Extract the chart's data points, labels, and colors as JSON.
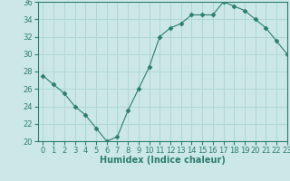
{
  "x": [
    0,
    1,
    2,
    3,
    4,
    5,
    6,
    7,
    8,
    9,
    10,
    11,
    12,
    13,
    14,
    15,
    16,
    17,
    18,
    19,
    20,
    21,
    22,
    23
  ],
  "y": [
    27.5,
    26.5,
    25.5,
    24.0,
    23.0,
    21.5,
    20.0,
    20.5,
    23.5,
    26.0,
    28.5,
    32.0,
    33.0,
    33.5,
    34.5,
    34.5,
    34.5,
    36.0,
    35.5,
    35.0,
    34.0,
    33.0,
    31.5,
    30.0
  ],
  "line_color": "#2d7d6e",
  "marker": "D",
  "marker_size": 2.5,
  "bg_color": "#cce8e6",
  "grid_color": "#b0d8d5",
  "xlabel": "Humidex (Indice chaleur)",
  "ylim": [
    20,
    36
  ],
  "xlim": [
    -0.5,
    23
  ],
  "yticks": [
    20,
    22,
    24,
    26,
    28,
    30,
    32,
    34,
    36
  ],
  "xticks": [
    0,
    1,
    2,
    3,
    4,
    5,
    6,
    7,
    8,
    9,
    10,
    11,
    12,
    13,
    14,
    15,
    16,
    17,
    18,
    19,
    20,
    21,
    22,
    23
  ],
  "tick_color": "#2d7d6e",
  "label_color": "#2d7d6e",
  "label_fontsize": 7,
  "tick_fontsize": 6
}
